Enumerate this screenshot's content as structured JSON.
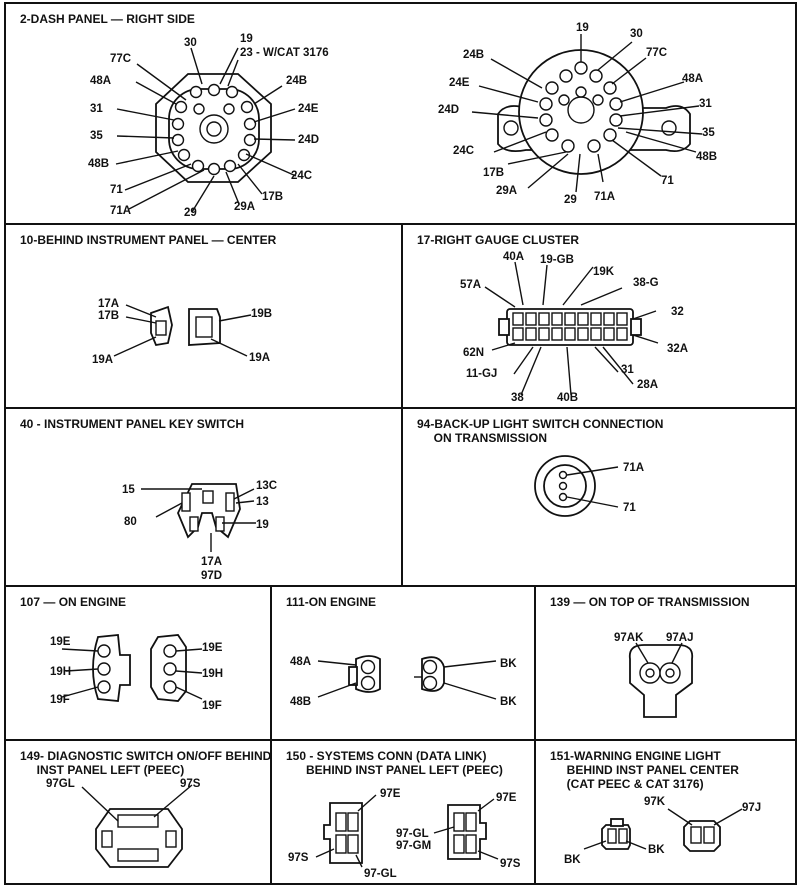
{
  "p1": {
    "title": "2-DASH PANEL — RIGHT SIDE",
    "left_labels": [
      "30",
      "19",
      "23 - W/CAT 3176",
      "77C",
      "24B",
      "48A",
      "31",
      "24E",
      "35",
      "24D",
      "48B",
      "24C",
      "71",
      "17B",
      "71A",
      "29A",
      "29"
    ],
    "right_labels": [
      "19",
      "30",
      "77C",
      "24B",
      "48A",
      "24E",
      "31",
      "24D",
      "35",
      "24C",
      "48B",
      "17B",
      "71",
      "29A",
      "29",
      "71A"
    ]
  },
  "p2": {
    "title": "10-BEHIND INSTRUMENT PANEL — CENTER",
    "labels": [
      "17A",
      "17B",
      "19B",
      "19A",
      "19A"
    ]
  },
  "p3": {
    "title": "17-RIGHT GAUGE CLUSTER",
    "labels": [
      "40A",
      "19-GB",
      "19K",
      "57A",
      "38-G",
      "32",
      "62N",
      "32A",
      "11-GJ",
      "31",
      "28A",
      "38",
      "40B"
    ]
  },
  "p4": {
    "title": "40 - INSTRUMENT PANEL KEY SWITCH",
    "labels": [
      "15",
      "13C",
      "13",
      "80",
      "19",
      "17A",
      "97D"
    ]
  },
  "p5": {
    "title": "94-BACK-UP LIGHT SWITCH CONNECTION\n     ON TRANSMISSION",
    "labels": [
      "71A",
      "71"
    ]
  },
  "p6": {
    "title": "107 — ON ENGINE",
    "labels": [
      "19E",
      "19H",
      "19F",
      "19E",
      "19H",
      "19F"
    ]
  },
  "p7": {
    "title": "111-ON ENGINE",
    "labels": [
      "48A",
      "48B",
      "BK",
      "BK"
    ]
  },
  "p8": {
    "title": "139 — ON TOP OF TRANSMISSION",
    "labels": [
      "97AK",
      "97AJ"
    ]
  },
  "p9": {
    "title": "149- DIAGNOSTIC SWITCH ON/OFF BEHIND\n     INST PANEL LEFT (PEEC)",
    "labels": [
      "97GL",
      "97S"
    ]
  },
  "p10": {
    "title": "150 - SYSTEMS CONN (DATA LINK)\n      BEHIND INST PANEL LEFT (PEEC)",
    "labels": [
      "97E",
      "97S",
      "97-GL",
      "97E",
      "97-GL",
      "97-GM",
      "97S"
    ]
  },
  "p11": {
    "title": "151-WARNING ENGINE LIGHT\n     BEHIND INST PANEL CENTER\n     (CAT PEEC & CAT 3176)",
    "labels": [
      "97K",
      "97J",
      "BK",
      "BK"
    ]
  }
}
